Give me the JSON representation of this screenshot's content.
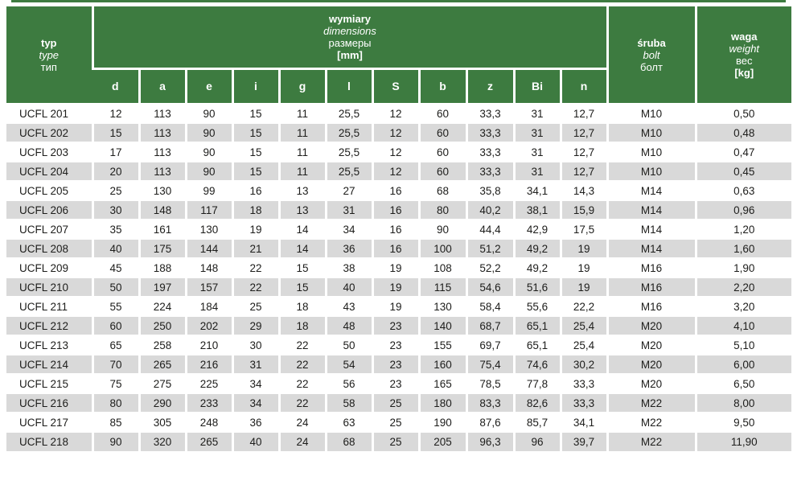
{
  "colors": {
    "header_green": "#3d7b40",
    "row_alt_gray": "#d9d9d9",
    "text_dark": "#1d1d1b",
    "header_text": "#ffffff"
  },
  "table": {
    "type_header": {
      "pl": "typ",
      "en": "type",
      "ru": "тип"
    },
    "dimensions_header": {
      "pl": "wymiary",
      "en": "dimensions",
      "ru": "размеры",
      "unit": "[mm]"
    },
    "bolt_header": {
      "pl": "śruba",
      "en": "bolt",
      "ru": "болт"
    },
    "weight_header": {
      "pl": "waga",
      "en": "weight",
      "ru": "вес",
      "unit": "[kg]"
    },
    "dim_columns": [
      "d",
      "a",
      "e",
      "i",
      "g",
      "l",
      "S",
      "b",
      "z",
      "Bi",
      "n"
    ],
    "rows": [
      {
        "type": "UCFL 201",
        "dims": [
          "12",
          "113",
          "90",
          "15",
          "11",
          "25,5",
          "12",
          "60",
          "33,3",
          "31",
          "12,7"
        ],
        "bolt": "M10",
        "weight": "0,50"
      },
      {
        "type": "UCFL 202",
        "dims": [
          "15",
          "113",
          "90",
          "15",
          "11",
          "25,5",
          "12",
          "60",
          "33,3",
          "31",
          "12,7"
        ],
        "bolt": "M10",
        "weight": "0,48"
      },
      {
        "type": "UCFL 203",
        "dims": [
          "17",
          "113",
          "90",
          "15",
          "11",
          "25,5",
          "12",
          "60",
          "33,3",
          "31",
          "12,7"
        ],
        "bolt": "M10",
        "weight": "0,47"
      },
      {
        "type": "UCFL 204",
        "dims": [
          "20",
          "113",
          "90",
          "15",
          "11",
          "25,5",
          "12",
          "60",
          "33,3",
          "31",
          "12,7"
        ],
        "bolt": "M10",
        "weight": "0,45"
      },
      {
        "type": "UCFL 205",
        "dims": [
          "25",
          "130",
          "99",
          "16",
          "13",
          "27",
          "16",
          "68",
          "35,8",
          "34,1",
          "14,3"
        ],
        "bolt": "M14",
        "weight": "0,63"
      },
      {
        "type": "UCFL 206",
        "dims": [
          "30",
          "148",
          "117",
          "18",
          "13",
          "31",
          "16",
          "80",
          "40,2",
          "38,1",
          "15,9"
        ],
        "bolt": "M14",
        "weight": "0,96"
      },
      {
        "type": "UCFL 207",
        "dims": [
          "35",
          "161",
          "130",
          "19",
          "14",
          "34",
          "16",
          "90",
          "44,4",
          "42,9",
          "17,5"
        ],
        "bolt": "M14",
        "weight": "1,20"
      },
      {
        "type": "UCFL 208",
        "dims": [
          "40",
          "175",
          "144",
          "21",
          "14",
          "36",
          "16",
          "100",
          "51,2",
          "49,2",
          "19"
        ],
        "bolt": "M14",
        "weight": "1,60"
      },
      {
        "type": "UCFL 209",
        "dims": [
          "45",
          "188",
          "148",
          "22",
          "15",
          "38",
          "19",
          "108",
          "52,2",
          "49,2",
          "19"
        ],
        "bolt": "M16",
        "weight": "1,90"
      },
      {
        "type": "UCFL 210",
        "dims": [
          "50",
          "197",
          "157",
          "22",
          "15",
          "40",
          "19",
          "115",
          "54,6",
          "51,6",
          "19"
        ],
        "bolt": "M16",
        "weight": "2,20"
      },
      {
        "type": "UCFL 211",
        "dims": [
          "55",
          "224",
          "184",
          "25",
          "18",
          "43",
          "19",
          "130",
          "58,4",
          "55,6",
          "22,2"
        ],
        "bolt": "M16",
        "weight": "3,20"
      },
      {
        "type": "UCFL 212",
        "dims": [
          "60",
          "250",
          "202",
          "29",
          "18",
          "48",
          "23",
          "140",
          "68,7",
          "65,1",
          "25,4"
        ],
        "bolt": "M20",
        "weight": "4,10"
      },
      {
        "type": "UCFL 213",
        "dims": [
          "65",
          "258",
          "210",
          "30",
          "22",
          "50",
          "23",
          "155",
          "69,7",
          "65,1",
          "25,4"
        ],
        "bolt": "M20",
        "weight": "5,10"
      },
      {
        "type": "UCFL 214",
        "dims": [
          "70",
          "265",
          "216",
          "31",
          "22",
          "54",
          "23",
          "160",
          "75,4",
          "74,6",
          "30,2"
        ],
        "bolt": "M20",
        "weight": "6,00"
      },
      {
        "type": "UCFL 215",
        "dims": [
          "75",
          "275",
          "225",
          "34",
          "22",
          "56",
          "23",
          "165",
          "78,5",
          "77,8",
          "33,3"
        ],
        "bolt": "M20",
        "weight": "6,50"
      },
      {
        "type": "UCFL 216",
        "dims": [
          "80",
          "290",
          "233",
          "34",
          "22",
          "58",
          "25",
          "180",
          "83,3",
          "82,6",
          "33,3"
        ],
        "bolt": "M22",
        "weight": "8,00"
      },
      {
        "type": "UCFL 217",
        "dims": [
          "85",
          "305",
          "248",
          "36",
          "24",
          "63",
          "25",
          "190",
          "87,6",
          "85,7",
          "34,1"
        ],
        "bolt": "M22",
        "weight": "9,50"
      },
      {
        "type": "UCFL 218",
        "dims": [
          "90",
          "320",
          "265",
          "40",
          "24",
          "68",
          "25",
          "205",
          "96,3",
          "96",
          "39,7"
        ],
        "bolt": "M22",
        "weight": "11,90"
      }
    ]
  }
}
